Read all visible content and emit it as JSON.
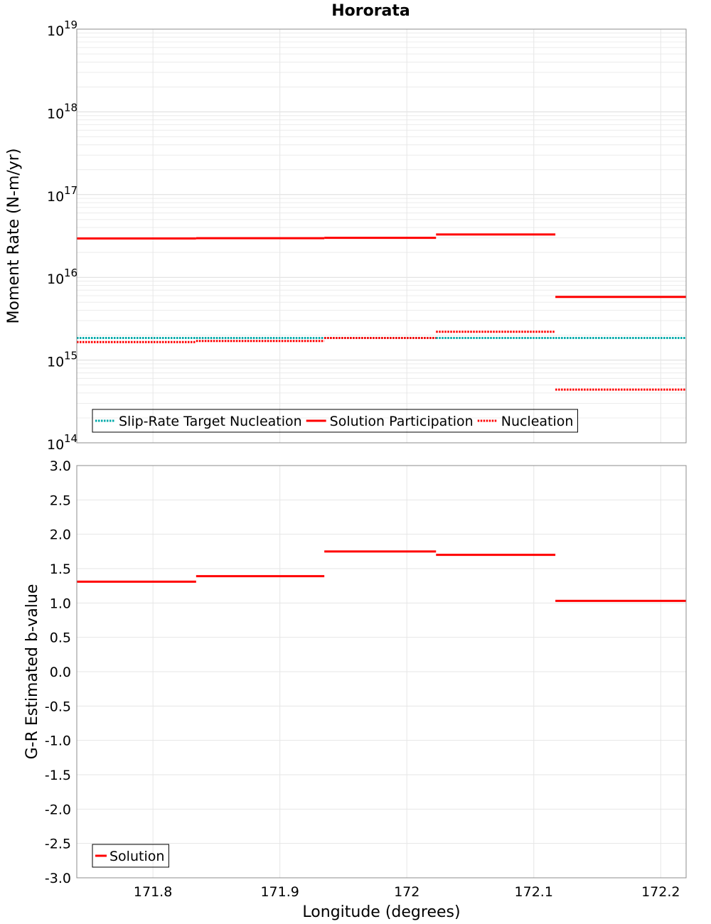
{
  "chart_data": [
    {
      "type": "line",
      "title": "Hororata",
      "xlabel": "Longitude (degrees)",
      "ylabel": "Moment Rate (N-m/yr)",
      "yscale": "log",
      "ylim": [
        100000000000000.0,
        1e+19
      ],
      "xlim": [
        171.74,
        172.22
      ],
      "grid": true,
      "legend_position": "bottom-left",
      "y_ticks": [
        {
          "base": "10",
          "exp": "14"
        },
        {
          "base": "10",
          "exp": "15"
        },
        {
          "base": "10",
          "exp": "16"
        },
        {
          "base": "10",
          "exp": "17"
        },
        {
          "base": "10",
          "exp": "18"
        },
        {
          "base": "10",
          "exp": "19"
        }
      ],
      "series": [
        {
          "name": "Slip-Rate Target Nucleation",
          "color": "#00aaaa",
          "style": "dotted",
          "segments": [
            {
              "x": [
                171.74,
                171.834
              ],
              "y": 1850000000000000.0
            },
            {
              "x": [
                171.834,
                171.935
              ],
              "y": 1850000000000000.0
            },
            {
              "x": [
                171.935,
                172.023
              ],
              "y": 1850000000000000.0
            },
            {
              "x": [
                172.023,
                172.117
              ],
              "y": 1850000000000000.0
            },
            {
              "x": [
                172.117,
                172.22
              ],
              "y": 1850000000000000.0
            }
          ]
        },
        {
          "name": "Solution Participation",
          "color": "#ff0000",
          "style": "solid",
          "segments": [
            {
              "x": [
                171.74,
                171.834
              ],
              "y": 2.95e+16
            },
            {
              "x": [
                171.834,
                171.935
              ],
              "y": 2.97e+16
            },
            {
              "x": [
                171.935,
                172.023
              ],
              "y": 3e+16
            },
            {
              "x": [
                172.023,
                172.117
              ],
              "y": 3.3e+16
            },
            {
              "x": [
                172.117,
                172.22
              ],
              "y": 5800000000000000.0
            }
          ]
        },
        {
          "name": "Nucleation",
          "color": "#ff0000",
          "style": "dotted",
          "segments": [
            {
              "x": [
                171.74,
                171.834
              ],
              "y": 1650000000000000.0
            },
            {
              "x": [
                171.834,
                171.935
              ],
              "y": 1700000000000000.0
            },
            {
              "x": [
                171.935,
                172.023
              ],
              "y": 1850000000000000.0
            },
            {
              "x": [
                172.023,
                172.117
              ],
              "y": 2200000000000000.0
            },
            {
              "x": [
                172.117,
                172.22
              ],
              "y": 440000000000000.0
            }
          ]
        }
      ]
    },
    {
      "type": "line",
      "xlabel": "Longitude (degrees)",
      "ylabel": "G-R Estimated b-value",
      "ylim": [
        -3.0,
        3.0
      ],
      "xlim": [
        171.74,
        172.22
      ],
      "grid": true,
      "legend_position": "bottom-left",
      "x_ticks": [
        {
          "value": 171.8,
          "label": "171.8"
        },
        {
          "value": 171.9,
          "label": "171.9"
        },
        {
          "value": 172.0,
          "label": "172"
        },
        {
          "value": 172.1,
          "label": "172.1"
        },
        {
          "value": 172.2,
          "label": "172.2"
        }
      ],
      "y_ticks": [
        {
          "value": 3.0,
          "label": "3.0"
        },
        {
          "value": 2.5,
          "label": "2.5"
        },
        {
          "value": 2.0,
          "label": "2.0"
        },
        {
          "value": 1.5,
          "label": "1.5"
        },
        {
          "value": 1.0,
          "label": "1.0"
        },
        {
          "value": 0.5,
          "label": "0.5"
        },
        {
          "value": 0.0,
          "label": "0.0"
        },
        {
          "value": -0.5,
          "label": "-0.5"
        },
        {
          "value": -1.0,
          "label": "-1.0"
        },
        {
          "value": -1.5,
          "label": "-1.5"
        },
        {
          "value": -2.0,
          "label": "-2.0"
        },
        {
          "value": -2.5,
          "label": "-2.5"
        },
        {
          "value": -3.0,
          "label": "-3.0"
        }
      ],
      "series": [
        {
          "name": "Solution",
          "color": "#ff0000",
          "style": "solid",
          "segments": [
            {
              "x": [
                171.74,
                171.834
              ],
              "y": 1.31
            },
            {
              "x": [
                171.834,
                171.935
              ],
              "y": 1.39
            },
            {
              "x": [
                171.935,
                172.023
              ],
              "y": 1.75
            },
            {
              "x": [
                172.023,
                172.117
              ],
              "y": 1.7
            },
            {
              "x": [
                172.117,
                172.22
              ],
              "y": 1.03
            }
          ]
        }
      ]
    }
  ]
}
